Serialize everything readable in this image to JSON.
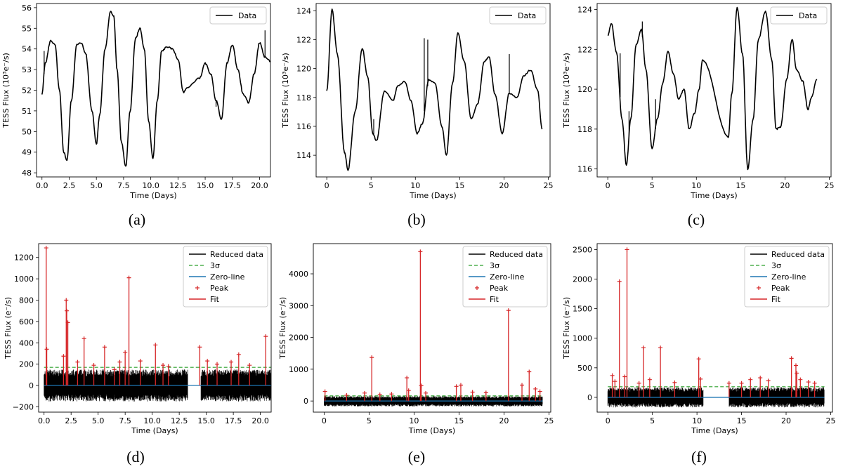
{
  "panels": [
    {
      "caption": "(a)",
      "chart_data": {
        "type": "line",
        "xlabel": "Time (Days)",
        "ylabel": "TESS Flux (10³e⁻/s)",
        "xlim": [
          -0.5,
          21
        ],
        "ylim": [
          47.8,
          56.2
        ],
        "xticks": [
          0.0,
          2.5,
          5.0,
          7.5,
          10.0,
          12.5,
          15.0,
          17.5,
          20.0
        ],
        "xtick_labels": [
          "0.0",
          "2.5",
          "5.0",
          "7.5",
          "10.0",
          "12.5",
          "15.0",
          "17.5",
          "20.0"
        ],
        "yticks": [
          48,
          49,
          50,
          51,
          52,
          53,
          54,
          55,
          56
        ],
        "legend": "top-right",
        "series": [
          {
            "name": "Data",
            "color": "#000000",
            "x": [
              0.0,
              0.3,
              0.8,
              1.2,
              1.6,
              2.0,
              2.3,
              2.7,
              3.2,
              3.6,
              4.0,
              4.6,
              5.0,
              5.3,
              5.8,
              6.3,
              6.6,
              6.9,
              7.3,
              7.7,
              8.1,
              8.6,
              9.0,
              9.4,
              9.8,
              10.2,
              10.6,
              11.0,
              11.5,
              12.0,
              12.5,
              13.0,
              13.3,
              14.5,
              15.0,
              15.5,
              16.0,
              16.5,
              17.0,
              17.5,
              18.0,
              18.5,
              19.0,
              19.5,
              20.0,
              20.5,
              21.0
            ],
            "y": [
              51.8,
              53.3,
              54.4,
              54.2,
              52.0,
              49.0,
              48.6,
              51.5,
              54.2,
              54.3,
              53.8,
              51.0,
              49.4,
              50.8,
              54.0,
              55.8,
              55.6,
              53.0,
              49.5,
              48.3,
              51.0,
              54.5,
              55.0,
              54.0,
              50.5,
              48.7,
              51.5,
              53.9,
              54.1,
              54.0,
              53.5,
              51.9,
              52.1,
              52.6,
              53.3,
              52.8,
              51.5,
              50.6,
              53.3,
              54.2,
              53.0,
              51.8,
              51.4,
              52.8,
              54.3,
              53.6,
              53.4
            ]
          }
        ],
        "spikes": [
          {
            "x": 0.2,
            "top": 53.9
          },
          {
            "x": 16.0,
            "top": 51.2
          },
          {
            "x": 20.5,
            "top": 54.9
          }
        ]
      }
    },
    {
      "caption": "(b)",
      "chart_data": {
        "type": "line",
        "xlabel": "Time (Days)",
        "ylabel": "TESS Flux (10³e⁻/s)",
        "xlim": [
          -1.2,
          25.2
        ],
        "ylim": [
          112.5,
          124.5
        ],
        "xticks": [
          0,
          5,
          10,
          15,
          20,
          25
        ],
        "xtick_labels": [
          "0",
          "5",
          "10",
          "15",
          "20",
          "25"
        ],
        "yticks": [
          114,
          116,
          118,
          120,
          122,
          124
        ],
        "legend": "top-right",
        "series": [
          {
            "name": "Data",
            "color": "#000000",
            "x": [
              0.0,
              0.6,
              1.2,
              2.0,
              2.4,
              3.2,
              4.0,
              4.6,
              5.2,
              5.6,
              6.5,
              7.5,
              8.0,
              8.8,
              9.5,
              10.2,
              10.8,
              11.5,
              12.2,
              13.0,
              13.5,
              14.2,
              14.8,
              15.5,
              16.3,
              17.0,
              17.8,
              18.3,
              19.0,
              19.8,
              20.6,
              21.5,
              22.2,
              23.0,
              23.8,
              24.3
            ],
            "y": [
              118.5,
              124.1,
              121.0,
              114.2,
              113.0,
              117.0,
              121.4,
              119.5,
              115.5,
              115.0,
              118.4,
              117.8,
              118.8,
              119.1,
              117.8,
              115.5,
              116.2,
              119.2,
              119.0,
              116.0,
              114.0,
              119.0,
              122.5,
              120.5,
              116.5,
              117.5,
              120.5,
              120.8,
              118.2,
              115.5,
              118.3,
              118.0,
              119.5,
              119.9,
              118.5,
              115.8
            ]
          }
        ],
        "spikes": [
          {
            "x": 5.3,
            "top": 116.5
          },
          {
            "x": 11.0,
            "top": 122.1
          },
          {
            "x": 11.4,
            "top": 122.0
          },
          {
            "x": 20.6,
            "top": 121.0
          }
        ]
      }
    },
    {
      "caption": "(c)",
      "chart_data": {
        "type": "line",
        "xlabel": "Time (Days)",
        "ylabel": "TESS Flux (10³e⁻/s)",
        "xlim": [
          -1.2,
          25.2
        ],
        "ylim": [
          115.6,
          124.3
        ],
        "xticks": [
          0,
          5,
          10,
          15,
          20,
          25
        ],
        "xtick_labels": [
          "0",
          "5",
          "10",
          "15",
          "20",
          "25"
        ],
        "yticks": [
          116,
          118,
          120,
          122,
          124
        ],
        "legend": "top-right",
        "series": [
          {
            "name": "Data",
            "color": "#000000",
            "x": [
              0.0,
              0.4,
              1.0,
              1.6,
              2.1,
              2.6,
              3.2,
              3.8,
              4.3,
              5.0,
              5.6,
              6.2,
              6.8,
              7.4,
              8.0,
              8.6,
              9.2,
              9.8,
              10.3,
              10.7,
              13.6,
              14.0,
              14.6,
              15.2,
              15.8,
              16.4,
              17.0,
              17.8,
              18.5,
              19.0,
              19.5,
              20.2,
              20.8,
              21.3,
              22.0,
              22.6,
              23.0,
              23.6
            ],
            "y": [
              122.7,
              123.3,
              121.8,
              118.5,
              116.2,
              118.5,
              122.2,
              123.0,
              121.0,
              117.0,
              118.5,
              120.3,
              121.9,
              120.8,
              119.5,
              120.0,
              118.0,
              118.8,
              120.0,
              121.5,
              117.6,
              119.8,
              124.1,
              121.8,
              116.0,
              118.5,
              122.5,
              123.9,
              121.5,
              118.0,
              118.1,
              120.5,
              122.5,
              121.0,
              120.4,
              119.0,
              119.6,
              120.5
            ]
          }
        ],
        "spikes": [
          {
            "x": 1.4,
            "top": 121.8
          },
          {
            "x": 2.4,
            "top": 118.9
          },
          {
            "x": 3.9,
            "top": 123.4
          },
          {
            "x": 5.4,
            "top": 119.5
          }
        ]
      }
    },
    {
      "caption": "(d)",
      "chart_data": {
        "type": "line",
        "xlabel": "Time (Days)",
        "ylabel": "TESS Flux (e⁻/s)",
        "xlim": [
          -0.5,
          21
        ],
        "ylim": [
          -250,
          1330
        ],
        "xticks": [
          0.0,
          2.5,
          5.0,
          7.5,
          10.0,
          12.5,
          15.0,
          17.5,
          20.0
        ],
        "xtick_labels": [
          "0.0",
          "2.5",
          "5.0",
          "7.5",
          "10.0",
          "12.5",
          "15.0",
          "17.5",
          "20.0"
        ],
        "yticks": [
          -200,
          0,
          200,
          400,
          600,
          800,
          1000,
          1200
        ],
        "threshold": 170,
        "gaps": [
          [
            13.3,
            14.5
          ]
        ],
        "noise_band": [
          -150,
          150
        ],
        "legend_entries": [
          "Reduced data",
          "3σ",
          "Zero-line",
          "Peak",
          "Fit"
        ],
        "peaks": [
          {
            "x": 0.2,
            "y": 1290
          },
          {
            "x": 0.25,
            "y": 340
          },
          {
            "x": 1.8,
            "y": 275
          },
          {
            "x": 2.05,
            "y": 800
          },
          {
            "x": 2.1,
            "y": 700
          },
          {
            "x": 2.2,
            "y": 590
          },
          {
            "x": 3.1,
            "y": 220
          },
          {
            "x": 3.7,
            "y": 440
          },
          {
            "x": 4.6,
            "y": 190
          },
          {
            "x": 5.6,
            "y": 360
          },
          {
            "x": 6.5,
            "y": 150
          },
          {
            "x": 7.0,
            "y": 220
          },
          {
            "x": 7.5,
            "y": 310
          },
          {
            "x": 7.85,
            "y": 1010
          },
          {
            "x": 8.9,
            "y": 230
          },
          {
            "x": 10.3,
            "y": 380
          },
          {
            "x": 11.0,
            "y": 190
          },
          {
            "x": 11.5,
            "y": 180
          },
          {
            "x": 14.4,
            "y": 360
          },
          {
            "x": 15.1,
            "y": 230
          },
          {
            "x": 16.0,
            "y": 200
          },
          {
            "x": 17.3,
            "y": 220
          },
          {
            "x": 18.0,
            "y": 290
          },
          {
            "x": 19.0,
            "y": 190
          },
          {
            "x": 20.5,
            "y": 460
          }
        ]
      }
    },
    {
      "caption": "(e)",
      "chart_data": {
        "type": "line",
        "xlabel": "Time (Days)",
        "ylabel": "TESS Flux (e⁻/s)",
        "xlim": [
          -1.2,
          25.2
        ],
        "ylim": [
          -350,
          4950
        ],
        "xticks": [
          0,
          5,
          10,
          15,
          20,
          25
        ],
        "xtick_labels": [
          "0",
          "5",
          "10",
          "15",
          "20",
          "25"
        ],
        "yticks": [
          0,
          1000,
          2000,
          3000,
          4000
        ],
        "threshold": 160,
        "gaps": [],
        "noise_band": [
          -170,
          150
        ],
        "legend_entries": [
          "Reduced data",
          "3σ",
          "Zero-line",
          "Peak",
          "Fit"
        ],
        "peaks": [
          {
            "x": 0.1,
            "y": 300
          },
          {
            "x": 2.5,
            "y": 180
          },
          {
            "x": 4.5,
            "y": 250
          },
          {
            "x": 5.3,
            "y": 1370
          },
          {
            "x": 6.2,
            "y": 200
          },
          {
            "x": 7.5,
            "y": 220
          },
          {
            "x": 9.2,
            "y": 730
          },
          {
            "x": 9.4,
            "y": 330
          },
          {
            "x": 10.7,
            "y": 4700
          },
          {
            "x": 10.8,
            "y": 480
          },
          {
            "x": 11.3,
            "y": 250
          },
          {
            "x": 14.7,
            "y": 460
          },
          {
            "x": 15.2,
            "y": 500
          },
          {
            "x": 16.5,
            "y": 280
          },
          {
            "x": 18.0,
            "y": 260
          },
          {
            "x": 20.5,
            "y": 2850
          },
          {
            "x": 22.0,
            "y": 500
          },
          {
            "x": 22.8,
            "y": 920
          },
          {
            "x": 23.5,
            "y": 380
          },
          {
            "x": 24.0,
            "y": 300
          }
        ]
      }
    },
    {
      "caption": "(f)",
      "chart_data": {
        "type": "line",
        "xlabel": "Time (Days)",
        "ylabel": "TESS Flux (e⁻/s)",
        "xlim": [
          -1.2,
          25.2
        ],
        "ylim": [
          -250,
          2600
        ],
        "xticks": [
          0,
          5,
          10,
          15,
          20,
          25
        ],
        "xtick_labels": [
          "0",
          "5",
          "10",
          "15",
          "20",
          "25"
        ],
        "yticks": [
          0,
          500,
          1000,
          1500,
          2000,
          2500
        ],
        "threshold": 180,
        "gaps": [
          [
            10.7,
            13.6
          ]
        ],
        "noise_band": [
          -170,
          170
        ],
        "legend_entries": [
          "Reduced data",
          "3σ",
          "Zero-line",
          "Peak",
          "Fit"
        ],
        "peaks": [
          {
            "x": 0.5,
            "y": 370
          },
          {
            "x": 0.8,
            "y": 270
          },
          {
            "x": 1.3,
            "y": 1960
          },
          {
            "x": 2.15,
            "y": 2500
          },
          {
            "x": 1.9,
            "y": 350
          },
          {
            "x": 3.5,
            "y": 240
          },
          {
            "x": 4.0,
            "y": 840
          },
          {
            "x": 4.7,
            "y": 300
          },
          {
            "x": 5.9,
            "y": 840
          },
          {
            "x": 7.5,
            "y": 250
          },
          {
            "x": 10.2,
            "y": 650
          },
          {
            "x": 10.4,
            "y": 310
          },
          {
            "x": 13.6,
            "y": 240
          },
          {
            "x": 15.0,
            "y": 240
          },
          {
            "x": 16.0,
            "y": 300
          },
          {
            "x": 17.1,
            "y": 330
          },
          {
            "x": 18.0,
            "y": 280
          },
          {
            "x": 20.6,
            "y": 660
          },
          {
            "x": 21.1,
            "y": 540
          },
          {
            "x": 21.2,
            "y": 410
          },
          {
            "x": 21.6,
            "y": 300
          },
          {
            "x": 22.5,
            "y": 260
          },
          {
            "x": 23.2,
            "y": 240
          }
        ]
      }
    }
  ]
}
